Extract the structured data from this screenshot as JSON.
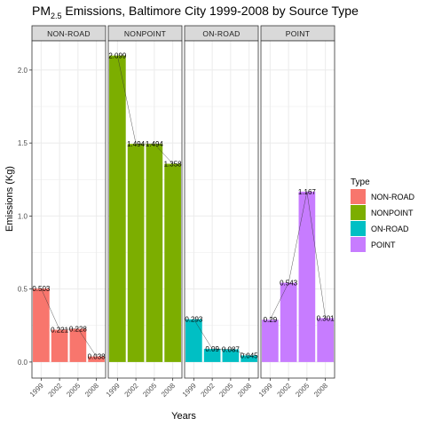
{
  "chart_data": {
    "type": "bar",
    "title": {
      "prefix": "PM",
      "subscript": "2.5",
      "suffix": " Emissions, Baltimore City 1999-2008 by Source Type"
    },
    "xlabel": "Years",
    "ylabel": "Emissions (Kg)",
    "categories": [
      "1999",
      "2002",
      "2005",
      "2008"
    ],
    "ylim": [
      -0.11,
      2.2
    ],
    "yticks": [
      0.0,
      0.5,
      1.0,
      1.5,
      2.0
    ],
    "ytick_labels": [
      "0.0",
      "0.5",
      "1.0",
      "1.5",
      "2.0"
    ],
    "grid": true,
    "facets": [
      {
        "name": "NON-ROAD",
        "color": "#F8766D",
        "values": [
          0.503,
          0.221,
          0.228,
          0.038
        ],
        "labels": [
          "0.503",
          "0.221",
          "0.228",
          "0.038"
        ]
      },
      {
        "name": "NONPOINT",
        "color": "#7CAE00",
        "values": [
          2.099,
          1.494,
          1.494,
          1.358
        ],
        "labels": [
          "2.099",
          "1.494",
          "1.494",
          "1.358"
        ]
      },
      {
        "name": "ON-ROAD",
        "color": "#00BFC4",
        "values": [
          0.293,
          0.09,
          0.087,
          0.045
        ],
        "labels": [
          "0.293",
          "0.09",
          "0.087",
          "0.045"
        ]
      },
      {
        "name": "POINT",
        "color": "#C77CFF",
        "values": [
          0.29,
          0.543,
          1.167,
          0.301
        ],
        "labels": [
          "0.29",
          "0.543",
          "1.167",
          "0.301"
        ]
      }
    ],
    "legend": {
      "title": "Type",
      "position": "right",
      "items": [
        {
          "label": "NON-ROAD",
          "color": "#F8766D"
        },
        {
          "label": "NONPOINT",
          "color": "#7CAE00"
        },
        {
          "label": "ON-ROAD",
          "color": "#00BFC4"
        },
        {
          "label": "POINT",
          "color": "#C77CFF"
        }
      ]
    },
    "panel_background": "#ffffff",
    "strip_background": "#D9D9D9",
    "grid_color": "#EBEBEB"
  }
}
